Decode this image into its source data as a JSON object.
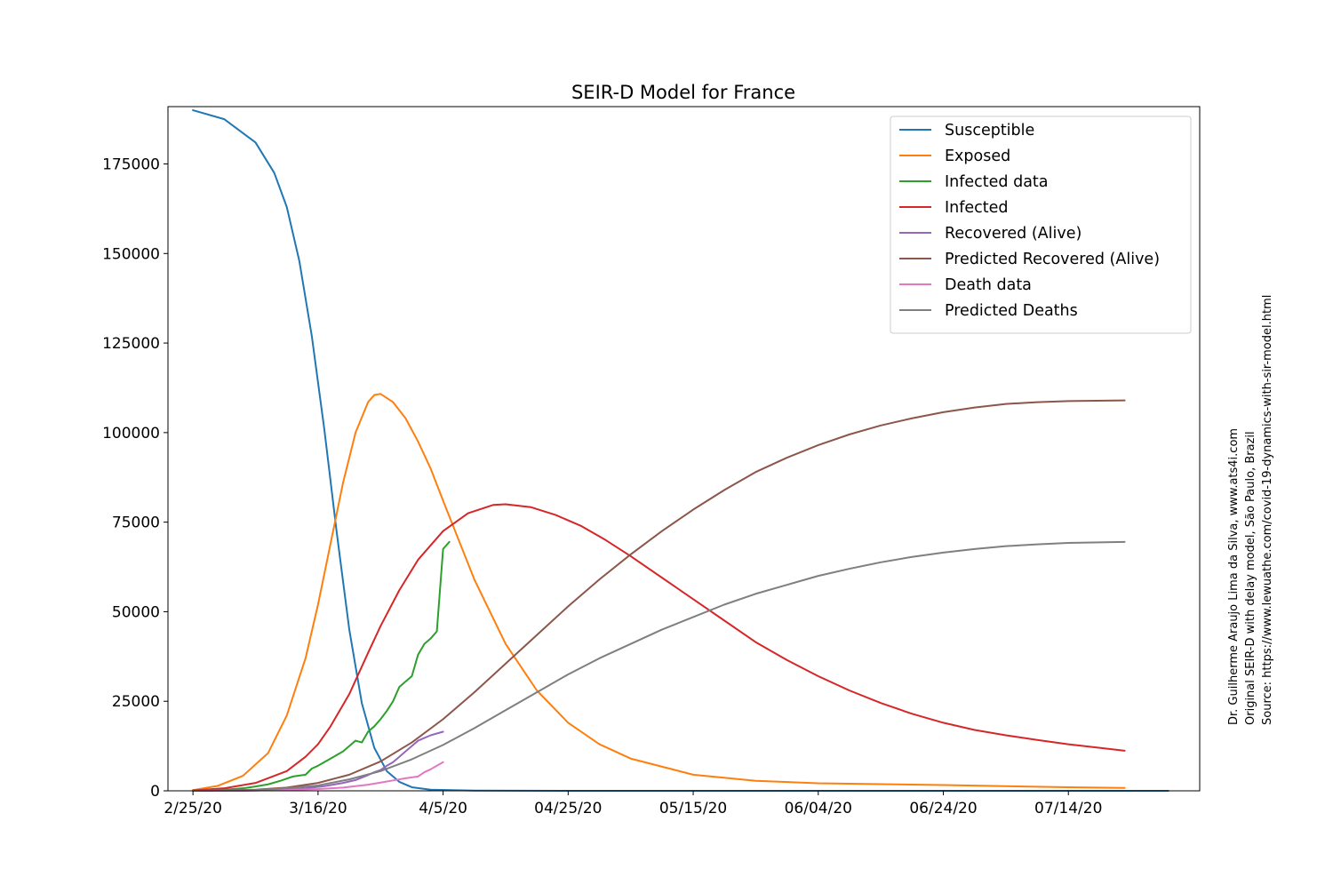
{
  "chart_data": {
    "type": "line",
    "title": "SEIR-D Model for France",
    "xlabel": "",
    "ylabel": "",
    "x_start": "2/25/20",
    "x_end": "7/30/20",
    "xlim": [
      "2/21/20",
      "8/4/20"
    ],
    "ylim": [
      0,
      191000
    ],
    "x_tick_labels": [
      "2/25/20",
      "3/16/20",
      "4/5/20",
      "04/25/20",
      "05/15/20",
      "06/04/20",
      "06/24/20",
      "07/14/20"
    ],
    "y_ticks": [
      0,
      25000,
      50000,
      75000,
      100000,
      125000,
      150000,
      175000
    ],
    "y_tick_labels": [
      "0",
      "25000",
      "50000",
      "75000",
      "100000",
      "125000",
      "150000",
      "175000"
    ],
    "legend_position": "top-right",
    "grid": false,
    "series": [
      {
        "name": "Susceptible",
        "color": "#1f77b4",
        "points": [
          [
            0,
            190000
          ],
          [
            5,
            187500
          ],
          [
            10,
            181000
          ],
          [
            13,
            172500
          ],
          [
            15,
            163000
          ],
          [
            17,
            148000
          ],
          [
            19,
            127000
          ],
          [
            21,
            101000
          ],
          [
            23,
            72000
          ],
          [
            25,
            45000
          ],
          [
            27,
            24500
          ],
          [
            29,
            12000
          ],
          [
            31,
            5500
          ],
          [
            33,
            2500
          ],
          [
            35,
            1000
          ],
          [
            38,
            300
          ],
          [
            45,
            50
          ],
          [
            60,
            5
          ],
          [
            156,
            0
          ]
        ]
      },
      {
        "name": "Exposed",
        "color": "#ff7f0e",
        "points": [
          [
            0,
            200
          ],
          [
            4,
            1400
          ],
          [
            8,
            4200
          ],
          [
            12,
            10500
          ],
          [
            15,
            21000
          ],
          [
            18,
            37000
          ],
          [
            20,
            52000
          ],
          [
            22,
            69000
          ],
          [
            24,
            86000
          ],
          [
            26,
            100000
          ],
          [
            28,
            108500
          ],
          [
            29,
            110500
          ],
          [
            30,
            110800
          ],
          [
            32,
            108500
          ],
          [
            34,
            104000
          ],
          [
            36,
            97500
          ],
          [
            38,
            90000
          ],
          [
            40,
            81000
          ],
          [
            45,
            59000
          ],
          [
            50,
            41000
          ],
          [
            55,
            28000
          ],
          [
            60,
            19000
          ],
          [
            65,
            13000
          ],
          [
            70,
            9000
          ],
          [
            80,
            4500
          ],
          [
            90,
            2800
          ],
          [
            100,
            2100
          ],
          [
            120,
            1600
          ],
          [
            140,
            1000
          ],
          [
            149,
            800
          ]
        ]
      },
      {
        "name": "Infected data",
        "color": "#2ca02c",
        "points": [
          [
            0,
            150
          ],
          [
            5,
            300
          ],
          [
            8,
            700
          ],
          [
            10,
            1200
          ],
          [
            12,
            1800
          ],
          [
            14,
            2800
          ],
          [
            16,
            4000
          ],
          [
            18,
            4500
          ],
          [
            19,
            6200
          ],
          [
            20,
            7000
          ],
          [
            21,
            8000
          ],
          [
            22,
            9000
          ],
          [
            24,
            11000
          ],
          [
            25,
            12500
          ],
          [
            26,
            14000
          ],
          [
            27,
            13500
          ],
          [
            28,
            16500
          ],
          [
            29,
            18000
          ],
          [
            30,
            20000
          ],
          [
            31,
            22300
          ],
          [
            32,
            25000
          ],
          [
            33,
            29000
          ],
          [
            34,
            30500
          ],
          [
            35,
            32000
          ],
          [
            36,
            38000
          ],
          [
            37,
            41000
          ],
          [
            38,
            42500
          ],
          [
            39,
            44500
          ],
          [
            40,
            67500
          ],
          [
            41,
            69500
          ]
        ]
      },
      {
        "name": "Infected",
        "color": "#d62728",
        "points": [
          [
            0,
            100
          ],
          [
            5,
            700
          ],
          [
            10,
            2200
          ],
          [
            15,
            5500
          ],
          [
            18,
            9500
          ],
          [
            20,
            13000
          ],
          [
            22,
            18000
          ],
          [
            25,
            27000
          ],
          [
            28,
            38500
          ],
          [
            30,
            46000
          ],
          [
            33,
            56000
          ],
          [
            36,
            64500
          ],
          [
            40,
            72500
          ],
          [
            44,
            77500
          ],
          [
            48,
            79800
          ],
          [
            50,
            80000
          ],
          [
            54,
            79200
          ],
          [
            58,
            77000
          ],
          [
            62,
            74000
          ],
          [
            66,
            70000
          ],
          [
            70,
            65500
          ],
          [
            75,
            59500
          ],
          [
            80,
            53500
          ],
          [
            85,
            47500
          ],
          [
            90,
            41500
          ],
          [
            95,
            36500
          ],
          [
            100,
            32000
          ],
          [
            105,
            28000
          ],
          [
            110,
            24500
          ],
          [
            115,
            21500
          ],
          [
            120,
            19000
          ],
          [
            125,
            17000
          ],
          [
            130,
            15500
          ],
          [
            135,
            14200
          ],
          [
            140,
            13000
          ],
          [
            145,
            12000
          ],
          [
            149,
            11200
          ]
        ]
      },
      {
        "name": "Recovered (Alive)",
        "color": "#9467bd",
        "points": [
          [
            0,
            10
          ],
          [
            8,
            40
          ],
          [
            12,
            150
          ],
          [
            15,
            350
          ],
          [
            18,
            700
          ],
          [
            21,
            1300
          ],
          [
            24,
            2200
          ],
          [
            26,
            3000
          ],
          [
            28,
            4400
          ],
          [
            29,
            5200
          ],
          [
            30,
            5800
          ],
          [
            31,
            7000
          ],
          [
            32,
            8000
          ],
          [
            33,
            9500
          ],
          [
            34,
            11000
          ],
          [
            35,
            12500
          ],
          [
            36,
            14000
          ],
          [
            38,
            15500
          ],
          [
            40,
            16500
          ]
        ]
      },
      {
        "name": "Predicted Recovered (Alive)",
        "color": "#8c564b",
        "points": [
          [
            0,
            0
          ],
          [
            10,
            300
          ],
          [
            15,
            900
          ],
          [
            20,
            2200
          ],
          [
            25,
            4500
          ],
          [
            30,
            8200
          ],
          [
            35,
            13500
          ],
          [
            40,
            20000
          ],
          [
            45,
            27500
          ],
          [
            50,
            35500
          ],
          [
            55,
            43500
          ],
          [
            60,
            51500
          ],
          [
            65,
            59000
          ],
          [
            70,
            66000
          ],
          [
            75,
            72500
          ],
          [
            80,
            78500
          ],
          [
            85,
            84000
          ],
          [
            90,
            89000
          ],
          [
            95,
            93000
          ],
          [
            100,
            96500
          ],
          [
            105,
            99500
          ],
          [
            110,
            102000
          ],
          [
            115,
            104000
          ],
          [
            120,
            105700
          ],
          [
            125,
            107000
          ],
          [
            130,
            108000
          ],
          [
            135,
            108500
          ],
          [
            140,
            108800
          ],
          [
            149,
            109000
          ]
        ]
      },
      {
        "name": "Death data",
        "color": "#e377c2",
        "points": [
          [
            0,
            5
          ],
          [
            10,
            100
          ],
          [
            15,
            250
          ],
          [
            20,
            500
          ],
          [
            24,
            900
          ],
          [
            26,
            1300
          ],
          [
            28,
            1700
          ],
          [
            30,
            2300
          ],
          [
            32,
            2900
          ],
          [
            34,
            3500
          ],
          [
            36,
            4000
          ],
          [
            37,
            5200
          ],
          [
            38,
            6000
          ],
          [
            39,
            7000
          ],
          [
            40,
            8000
          ]
        ]
      },
      {
        "name": "Predicted Deaths",
        "color": "#7f7f7f",
        "points": [
          [
            0,
            0
          ],
          [
            10,
            200
          ],
          [
            15,
            700
          ],
          [
            20,
            1500
          ],
          [
            25,
            3200
          ],
          [
            30,
            5500
          ],
          [
            35,
            8800
          ],
          [
            40,
            12800
          ],
          [
            45,
            17500
          ],
          [
            50,
            22500
          ],
          [
            55,
            27500
          ],
          [
            60,
            32500
          ],
          [
            65,
            37000
          ],
          [
            70,
            41000
          ],
          [
            75,
            45000
          ],
          [
            80,
            48500
          ],
          [
            85,
            52000
          ],
          [
            90,
            55000
          ],
          [
            95,
            57500
          ],
          [
            100,
            60000
          ],
          [
            105,
            62000
          ],
          [
            110,
            63800
          ],
          [
            115,
            65300
          ],
          [
            120,
            66500
          ],
          [
            125,
            67500
          ],
          [
            130,
            68300
          ],
          [
            135,
            68800
          ],
          [
            140,
            69200
          ],
          [
            149,
            69500
          ]
        ]
      }
    ]
  },
  "credits": [
    "Dr. Guilherme Araujo Lima da Silva, www.ats4i.com",
    "Original SEIR-D with delay model, São Paulo, Brazil",
    "Source: https://www.lewuathe.com/covid-19-dynamics-with-sir-model.html"
  ]
}
